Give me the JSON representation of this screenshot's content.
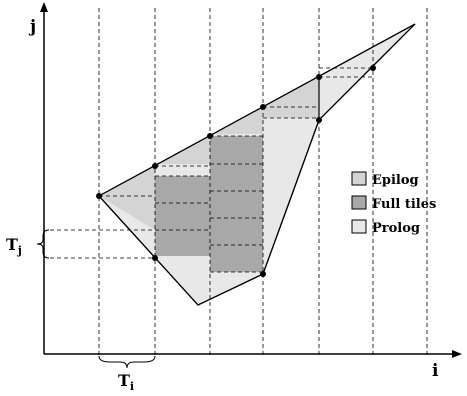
{
  "axes": {
    "x_label": "i",
    "y_label": "j"
  },
  "tile_labels": {
    "ti_main": "T",
    "ti_sub": "i",
    "tj_main": "T",
    "tj_sub": "j"
  },
  "legend": {
    "items": [
      {
        "label": "Epilog",
        "color": "#d4d4d4"
      },
      {
        "label": "Full tiles",
        "color": "#a8a8a8"
      },
      {
        "label": "Prolog",
        "color": "#e8e8e8"
      }
    ]
  },
  "colors": {
    "epilog": "#d4d4d4",
    "full": "#a8a8a8",
    "prolog": "#e8e8e8",
    "line": "#000000"
  }
}
